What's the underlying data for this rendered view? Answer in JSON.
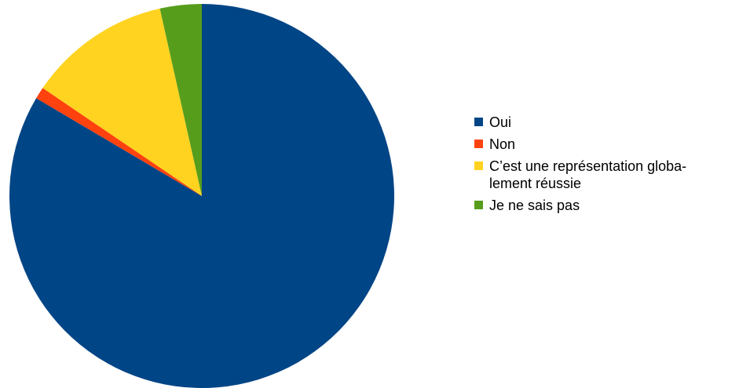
{
  "chart_data": {
    "type": "pie",
    "title": "",
    "start_angle": "top",
    "direction": "clockwise",
    "legend_position": "right",
    "slices": [
      {
        "label": "Oui",
        "value": 83.5,
        "color": "#004586"
      },
      {
        "label": "Non",
        "value": 1.0,
        "color": "#ff420e"
      },
      {
        "label": "C’est une représentation globalement réussie",
        "value": 12.0,
        "color": "#ffd320"
      },
      {
        "label": "Je ne sais pas",
        "value": 3.5,
        "color": "#579d1c"
      }
    ]
  },
  "legend": {
    "items": [
      {
        "label": "Oui",
        "color": "#004586"
      },
      {
        "label": "Non",
        "color": "#ff420e"
      },
      {
        "label_line1": "C’est une représentation globa-",
        "label_line2": "lement réussie",
        "color": "#ffd320"
      },
      {
        "label": "Je ne sais pas",
        "color": "#579d1c"
      }
    ]
  }
}
